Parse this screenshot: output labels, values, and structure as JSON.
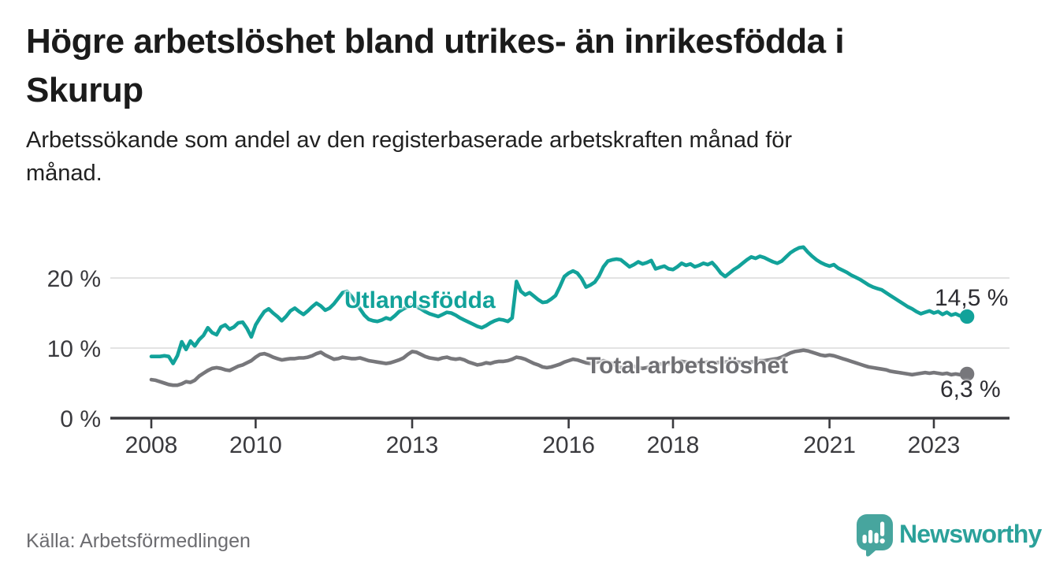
{
  "header": {
    "title": "Högre arbetslöshet bland utrikes- än inrikesfödda i\nSkurup",
    "subtitle": "Arbetssökande som andel av den registerbaserade arbetskraften månad för\nmånad."
  },
  "chart_data": {
    "type": "line",
    "unit": "%",
    "x_start": "2008-01",
    "x_end": "2023-09",
    "x_frequency": "monthly",
    "x_ticks": [
      2008,
      2010,
      2013,
      2016,
      2018,
      2021,
      2023
    ],
    "y_axis": [
      {
        "value": 0,
        "label": "0 %"
      },
      {
        "value": 10,
        "label": "10 %"
      },
      {
        "value": 20,
        "label": "20 %"
      }
    ],
    "ylim": [
      0,
      27
    ],
    "grid": "horizontal",
    "series": [
      {
        "name": "Utlandsfödda",
        "color": "#12a29a",
        "end_value": 14.5,
        "end_label": "14,5 %",
        "values": [
          8.8,
          8.8,
          8.8,
          8.9,
          8.8,
          7.8,
          8.9,
          10.9,
          9.8,
          11.0,
          10.3,
          11.2,
          11.8,
          12.9,
          12.2,
          11.9,
          13.0,
          13.3,
          12.7,
          13.0,
          13.6,
          13.7,
          12.8,
          11.6,
          13.3,
          14.3,
          15.2,
          15.6,
          15.0,
          14.5,
          13.9,
          14.5,
          15.3,
          15.7,
          15.2,
          14.8,
          15.3,
          15.9,
          16.4,
          16.0,
          15.4,
          15.7,
          16.3,
          17.1,
          17.9,
          18.1,
          17.4,
          16.5,
          15.6,
          14.7,
          14.1,
          13.9,
          13.8,
          14.0,
          14.3,
          14.1,
          14.6,
          15.2,
          15.6,
          15.9,
          16.2,
          15.9,
          15.6,
          15.2,
          14.9,
          14.7,
          14.5,
          14.8,
          15.1,
          15.0,
          14.7,
          14.3,
          14.0,
          13.7,
          13.4,
          13.1,
          12.9,
          13.2,
          13.6,
          13.9,
          14.1,
          14.0,
          13.8,
          14.3,
          19.5,
          18.1,
          17.6,
          17.9,
          17.4,
          16.9,
          16.5,
          16.6,
          17.0,
          17.5,
          18.8,
          20.2,
          20.7,
          21.0,
          20.7,
          19.9,
          18.7,
          19.0,
          19.4,
          20.3,
          21.6,
          22.4,
          22.6,
          22.7,
          22.6,
          22.1,
          21.6,
          21.9,
          22.3,
          22.0,
          22.2,
          22.5,
          21.3,
          21.5,
          21.7,
          21.3,
          21.2,
          21.6,
          22.1,
          21.8,
          22.0,
          21.6,
          21.8,
          22.1,
          21.9,
          22.2,
          21.5,
          20.7,
          20.2,
          20.7,
          21.2,
          21.6,
          22.1,
          22.6,
          23.0,
          22.8,
          23.1,
          22.9,
          22.6,
          22.3,
          22.1,
          22.4,
          23.0,
          23.6,
          24.0,
          24.3,
          24.4,
          23.7,
          23.1,
          22.6,
          22.2,
          21.9,
          21.7,
          21.9,
          21.4,
          21.1,
          20.8,
          20.4,
          20.1,
          19.8,
          19.4,
          19.0,
          18.7,
          18.5,
          18.3,
          17.9,
          17.5,
          17.1,
          16.7,
          16.3,
          15.9,
          15.6,
          15.2,
          14.9,
          15.1,
          15.3,
          15.0,
          15.2,
          14.8,
          15.1,
          14.7,
          14.9,
          14.6,
          14.8,
          14.5
        ]
      },
      {
        "name": "Total arbetslöshet",
        "color": "#77777b",
        "end_value": 6.3,
        "end_label": "6,3 %",
        "values": [
          5.5,
          5.4,
          5.2,
          5.0,
          4.8,
          4.7,
          4.7,
          4.9,
          5.2,
          5.1,
          5.4,
          6.0,
          6.4,
          6.8,
          7.1,
          7.2,
          7.1,
          6.9,
          6.8,
          7.1,
          7.4,
          7.6,
          7.9,
          8.2,
          8.7,
          9.1,
          9.2,
          9.0,
          8.7,
          8.5,
          8.3,
          8.4,
          8.5,
          8.5,
          8.6,
          8.6,
          8.7,
          8.9,
          9.2,
          9.4,
          9.0,
          8.7,
          8.4,
          8.5,
          8.7,
          8.6,
          8.5,
          8.5,
          8.6,
          8.4,
          8.2,
          8.1,
          8.0,
          7.9,
          7.8,
          7.9,
          8.1,
          8.3,
          8.6,
          9.1,
          9.5,
          9.4,
          9.1,
          8.8,
          8.6,
          8.5,
          8.4,
          8.6,
          8.7,
          8.5,
          8.4,
          8.5,
          8.3,
          8.0,
          7.8,
          7.6,
          7.7,
          7.9,
          7.8,
          8.0,
          8.1,
          8.1,
          8.2,
          8.4,
          8.7,
          8.6,
          8.4,
          8.1,
          7.8,
          7.6,
          7.3,
          7.2,
          7.3,
          7.5,
          7.7,
          8.0,
          8.2,
          8.4,
          8.3,
          8.1,
          7.9,
          7.8,
          7.9,
          8.1,
          8.2,
          8.0,
          7.8,
          7.4,
          7.2,
          7.3,
          7.5,
          7.4,
          7.2,
          7.1,
          7.2,
          7.4,
          7.6,
          7.7,
          7.8,
          7.8,
          7.9,
          8.0,
          8.1,
          8.0,
          7.9,
          7.8,
          7.8,
          7.9,
          8.0,
          7.9,
          7.9,
          8.0,
          8.0,
          8.1,
          8.1,
          8.0,
          7.9,
          7.9,
          8.0,
          8.1,
          8.2,
          8.2,
          8.3,
          8.4,
          8.5,
          8.7,
          9.0,
          9.3,
          9.5,
          9.6,
          9.7,
          9.6,
          9.4,
          9.2,
          9.0,
          8.9,
          9.0,
          8.9,
          8.7,
          8.5,
          8.3,
          8.1,
          7.9,
          7.7,
          7.5,
          7.3,
          7.2,
          7.1,
          7.0,
          6.9,
          6.7,
          6.6,
          6.5,
          6.4,
          6.3,
          6.2,
          6.3,
          6.4,
          6.5,
          6.4,
          6.5,
          6.4,
          6.3,
          6.4,
          6.2,
          6.3,
          6.2,
          6.4,
          6.3
        ]
      }
    ]
  },
  "footer": {
    "source": "Källa: Arbetsförmedlingen",
    "brand": "Newsworthy"
  },
  "colors": {
    "accent": "#12a29a",
    "gray_line": "#77777b",
    "gray_label": "#6f6f73",
    "axis": "#3a3a3e",
    "grid": "#dadada",
    "title": "#1b1b1b",
    "source": "#6c6c70",
    "logo_icon": "#47a59e",
    "logo_text": "#2ba19a"
  }
}
